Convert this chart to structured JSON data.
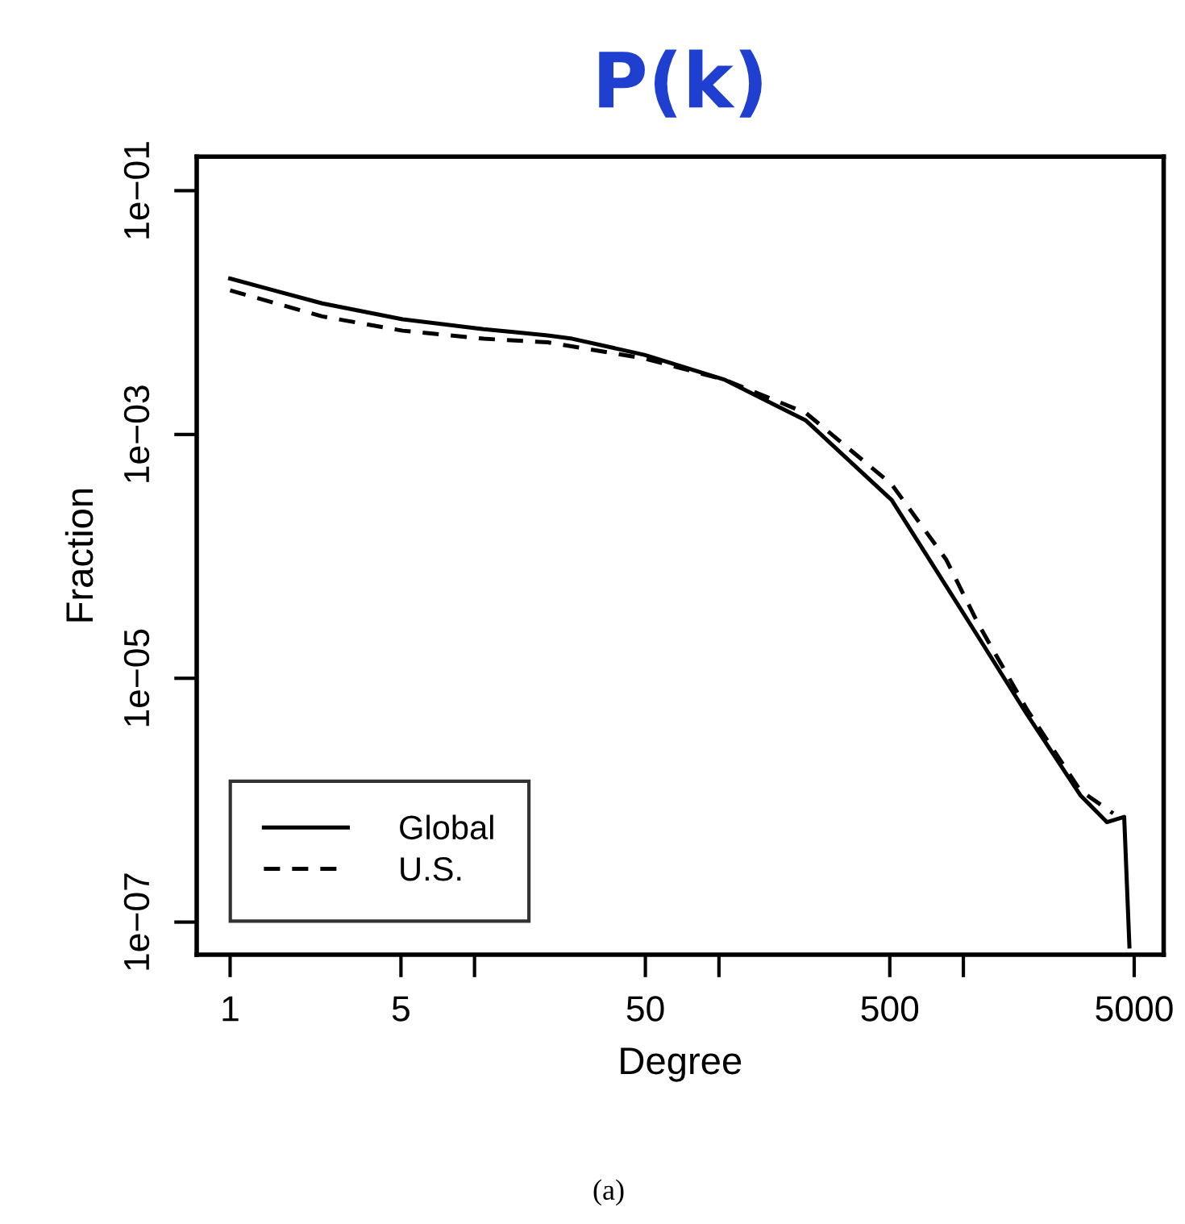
{
  "chart_data": {
    "type": "line",
    "title": "P(k)",
    "xlabel": "Degree",
    "ylabel": "Fraction",
    "log": "xy",
    "xlim": [
      0.73,
      6600
    ],
    "ylim": [
      5.4e-08,
      0.19
    ],
    "xticks": [
      1,
      5,
      {
        "value": 10,
        "label": null
      },
      50,
      {
        "value": 100,
        "label": null
      },
      500,
      {
        "value": 1000,
        "label": null
      },
      5000
    ],
    "yticks": [
      {
        "value": 1e-07,
        "label": "1e−07"
      },
      {
        "value": 1e-05,
        "label": "1e−05"
      },
      {
        "value": 0.001,
        "label": "1e−03"
      },
      {
        "value": 0.1,
        "label": "1e−01"
      }
    ],
    "grid": false,
    "legend": "bottom left",
    "annotations": [
      "(a)"
    ],
    "series": [
      {
        "name": "Global",
        "color": "#000000",
        "line_style": "solid",
        "x": [
          1,
          1.51,
          2.38,
          5.08,
          10.9,
          14.7,
          19.9,
          25.1,
          49.6,
          106,
          227,
          509,
          1090,
          1816,
          3010,
          3870,
          4550,
          4780
        ],
        "values": [
          0.019,
          0.0152,
          0.0119,
          0.0088,
          0.0073,
          0.0069,
          0.0065,
          0.0061,
          0.0045,
          0.0028,
          0.0013,
          0.00029,
          2.6e-05,
          5.1e-06,
          1.1e-06,
          6.6e-07,
          7.3e-07,
          6.3e-08
        ]
      },
      {
        "name": "U.S.",
        "color": "#000000",
        "line_style": "dashed",
        "x": [
          1,
          2.38,
          5.08,
          10.9,
          19.9,
          49.6,
          106,
          227,
          509,
          851,
          1150,
          1816,
          3010,
          4100
        ],
        "values": [
          0.0152,
          0.0093,
          0.0071,
          0.0061,
          0.0057,
          0.0042,
          0.0028,
          0.0015,
          0.00039,
          9.4e-05,
          2.8e-05,
          5.6e-06,
          1.2e-06,
          7.8e-07
        ]
      }
    ]
  }
}
